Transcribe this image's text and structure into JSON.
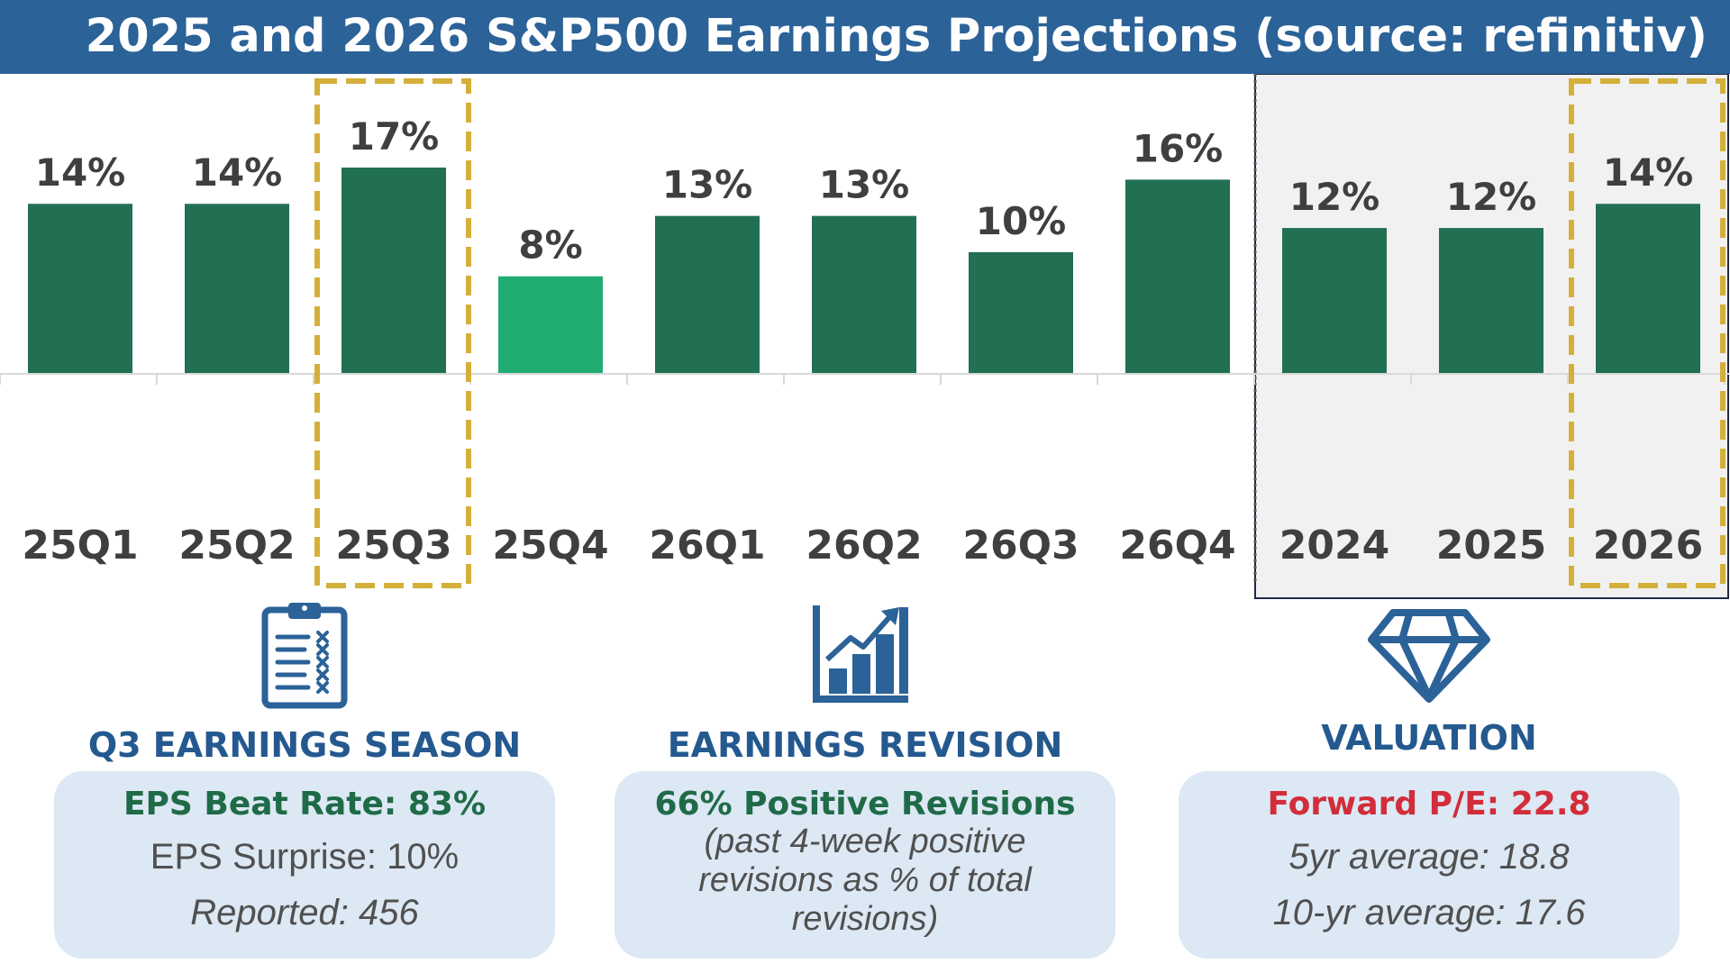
{
  "header": {
    "title": "2025 and 2026 S&P500 Earnings Projections (source: refinitiv)"
  },
  "colors": {
    "header_bg": "#2b6298",
    "bar_dark": "#217052",
    "bar_light": "#21ac72",
    "highlight_box": "#d4b03a",
    "annual_panel": "#f1f1f1",
    "title_blue": "#24598f",
    "green_text": "#1f6b48",
    "red_text": "#d22d3a",
    "card_bg": "#dce8f4"
  },
  "chart_data": {
    "type": "bar",
    "title": "2025 and 2026 S&P500 Earnings Projections (source: refinitiv)",
    "categories": [
      "25Q1",
      "25Q2",
      "25Q3",
      "25Q4",
      "26Q1",
      "26Q2",
      "26Q3",
      "26Q4",
      "2024",
      "2025",
      "2026"
    ],
    "values": [
      14,
      14,
      17,
      8,
      13,
      13,
      10,
      16,
      12,
      12,
      14
    ],
    "labels": [
      "14%",
      "14%",
      "17%",
      "8%",
      "13%",
      "13%",
      "10%",
      "16%",
      "12%",
      "12%",
      "14%"
    ],
    "bar_colors": [
      "#217052",
      "#217052",
      "#217052",
      "#21ac72",
      "#217052",
      "#217052",
      "#217052",
      "#217052",
      "#217052",
      "#217052",
      "#217052"
    ],
    "highlighted_categories": [
      "25Q3",
      "2026"
    ],
    "annual_categories": [
      "2024",
      "2025",
      "2026"
    ],
    "unit": "%",
    "xlabel": "",
    "ylabel": "",
    "ylim": [
      0,
      25
    ]
  },
  "cards": [
    {
      "icon": "clipboard-icon",
      "title": "Q3 EARNINGS SEASON",
      "headline": "EPS Beat Rate: 83%",
      "line1": "EPS Surprise: 10%",
      "line2": "Reported: 456"
    },
    {
      "icon": "bar-chart-growth-icon",
      "title": "EARNINGS REVISION",
      "headline": "66% Positive Revisions",
      "note_line1": "(past 4-week positive",
      "note_line2": "revisions as % of total",
      "note_line3": "revisions)"
    },
    {
      "icon": "diamond-icon",
      "title": "VALUATION",
      "headline": "Forward P/E: 22.8",
      "line1": "5yr average: 18.8",
      "line2": "10-yr average: 17.6"
    }
  ]
}
